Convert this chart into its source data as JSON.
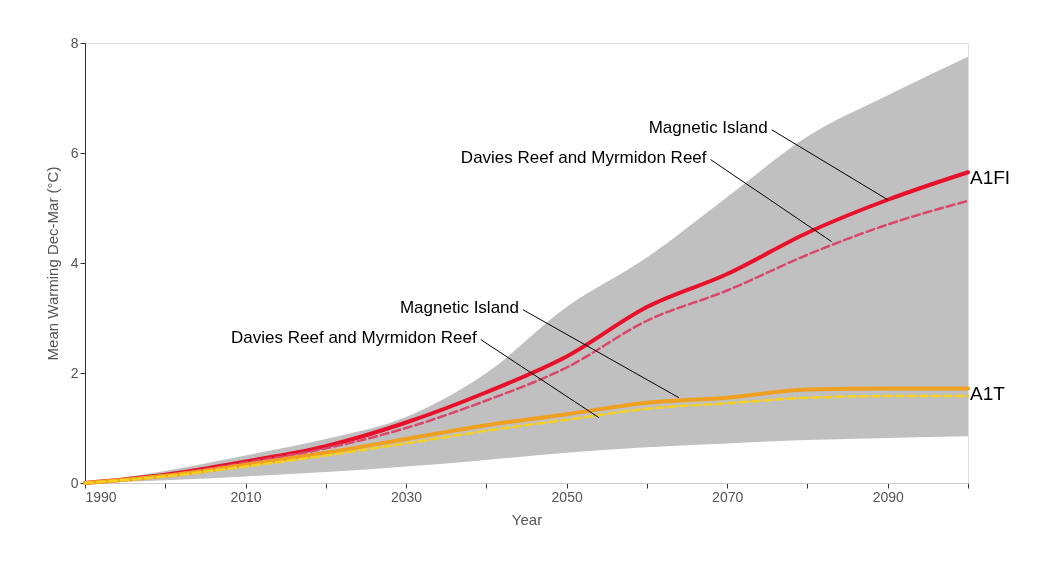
{
  "chart_data": {
    "type": "line",
    "xlabel": "Year",
    "ylabel": "Mean Warming Dec-Mar (°C)",
    "x": [
      1990,
      2000,
      2010,
      2020,
      2030,
      2040,
      2050,
      2060,
      2070,
      2080,
      2090,
      2100
    ],
    "series": [
      {
        "color": "#e8102a",
        "line_style": "solid",
        "values": [
          0,
          0.15,
          0.39,
          0.67,
          1.1,
          1.65,
          2.3,
          3.2,
          3.8,
          4.55,
          5.15,
          5.65
        ],
        "lower": [
          0,
          0.05,
          0.12,
          0.2,
          0.3,
          0.42,
          0.55,
          0.65,
          0.72,
          0.78,
          0.82,
          0.85
        ],
        "upper": [
          0,
          0.22,
          0.5,
          0.8,
          1.2,
          2.0,
          3.2,
          4.1,
          5.2,
          6.3,
          7.05,
          7.75
        ]
      },
      {
        "color": "#d9486a",
        "line_style": "dashed",
        "values": [
          0,
          0.14,
          0.37,
          0.63,
          1.0,
          1.5,
          2.1,
          2.95,
          3.5,
          4.15,
          4.7,
          5.13
        ]
      },
      {
        "color": "#f0a020",
        "line_style": "solid",
        "values": [
          0,
          0.13,
          0.33,
          0.55,
          0.8,
          1.05,
          1.25,
          1.46,
          1.55,
          1.7,
          1.72,
          1.72
        ]
      },
      {
        "color": "#f5d020",
        "line_style": "dashed",
        "values": [
          0,
          0.12,
          0.3,
          0.5,
          0.72,
          0.95,
          1.15,
          1.35,
          1.45,
          1.55,
          1.58,
          1.58
        ]
      }
    ],
    "xlim": [
      1990,
      2100
    ],
    "xticks": [
      1990,
      {
        "value": 2000,
        "label": null
      },
      2010,
      {
        "value": 2020,
        "label": null
      },
      2030,
      {
        "value": 2040,
        "label": null
      },
      2050,
      {
        "value": 2060,
        "label": null
      },
      2070,
      {
        "value": 2080,
        "label": null
      },
      2090,
      {
        "value": 2100,
        "label": null
      }
    ],
    "ylim": [
      0,
      8
    ],
    "yticks": [
      0,
      2,
      4,
      6,
      8
    ],
    "grid": false,
    "marker": "none",
    "annotations": [
      {
        "text": "Magnetic Island",
        "x": 2090,
        "y": 5.15
      },
      {
        "text": "Davies Reef and Myrmidon Reef",
        "x": 2083,
        "y": 4.39
      },
      {
        "text": "Magnetic Island",
        "x": 2064,
        "y": 1.55
      },
      {
        "text": "Davies Reef and Myrmidon Reef",
        "x": 2054,
        "y": 1.19
      },
      {
        "text": "A1FI",
        "x": 2100,
        "y": 5.65
      },
      {
        "text": "A1T",
        "x": 2100,
        "y": 1.72
      }
    ]
  }
}
